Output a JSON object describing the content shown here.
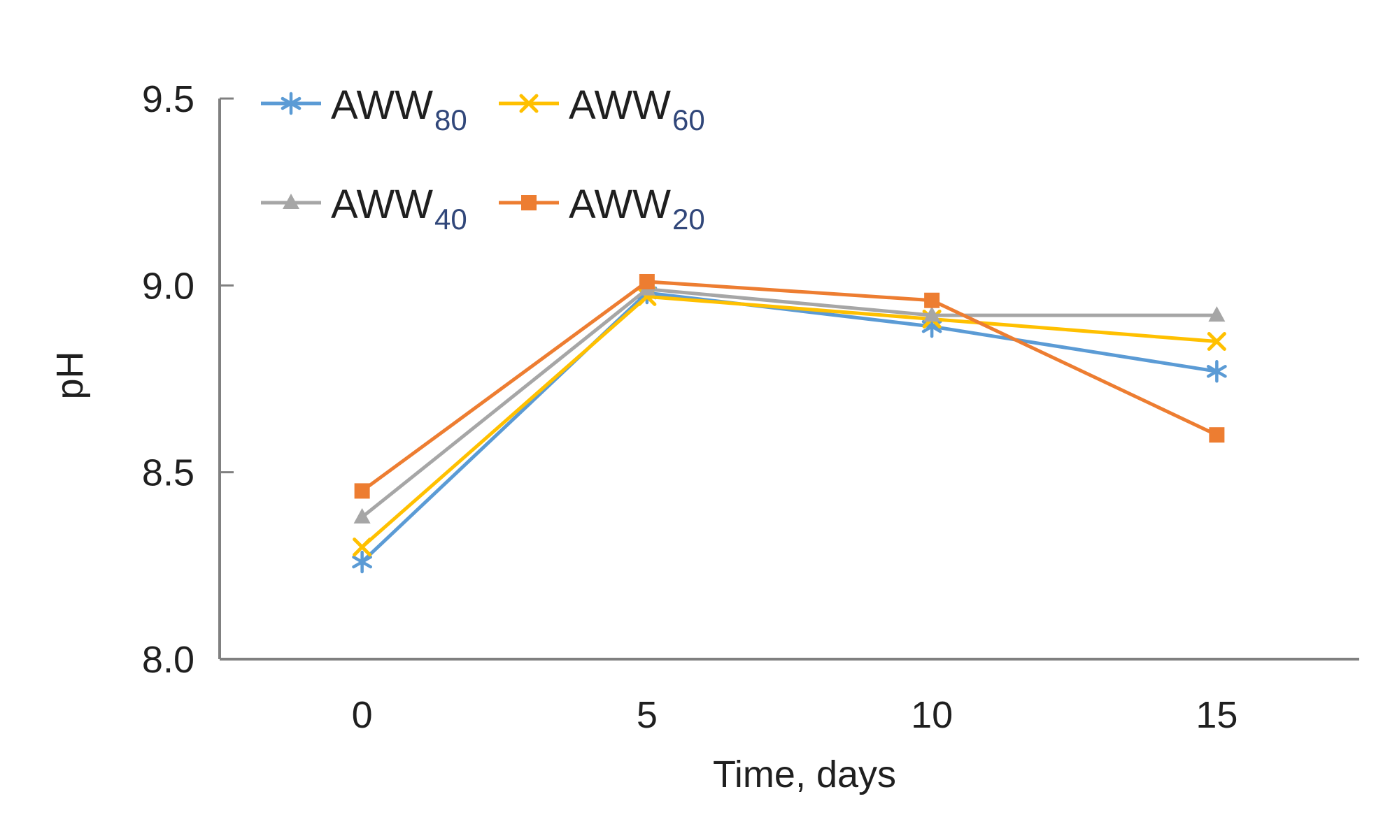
{
  "figure": {
    "background": "#ffffff",
    "text_color": "#1f1f1f",
    "axis_color": "#808080",
    "subscript_color": "#31477a"
  },
  "chart_data": {
    "type": "line",
    "title": "",
    "xlabel": "Time, days",
    "ylabel": "pH",
    "categories": [
      0,
      5,
      10,
      15
    ],
    "x_tick_labels": [
      "0",
      "5",
      "10",
      "15"
    ],
    "y_ticks": [
      9.5,
      9.0,
      8.5,
      8.0
    ],
    "y_tick_labels": [
      "9.5",
      "9.0",
      "8.5",
      "8.0"
    ],
    "ylim": [
      8.0,
      9.5
    ],
    "grid": false,
    "legend_position": "top-left-inside",
    "legend_columns": 2,
    "series": [
      {
        "label": "AWW80",
        "label_base": "AWW",
        "label_sub": "80",
        "color": "#5B9BD5",
        "marker": "asterisk",
        "values": [
          8.26,
          8.98,
          8.89,
          8.77
        ]
      },
      {
        "label": "AWW60",
        "label_base": "AWW",
        "label_sub": "60",
        "color": "#FFC000",
        "marker": "x",
        "values": [
          8.3,
          8.97,
          8.91,
          8.85
        ]
      },
      {
        "label": "AWW40",
        "label_base": "AWW",
        "label_sub": "40",
        "color": "#A6A6A6",
        "marker": "triangle",
        "values": [
          8.38,
          8.99,
          8.92,
          8.92
        ]
      },
      {
        "label": "AWW20",
        "label_base": "AWW",
        "label_sub": "20",
        "color": "#ED7D31",
        "marker": "square",
        "values": [
          8.45,
          9.01,
          8.96,
          8.6
        ]
      }
    ]
  }
}
